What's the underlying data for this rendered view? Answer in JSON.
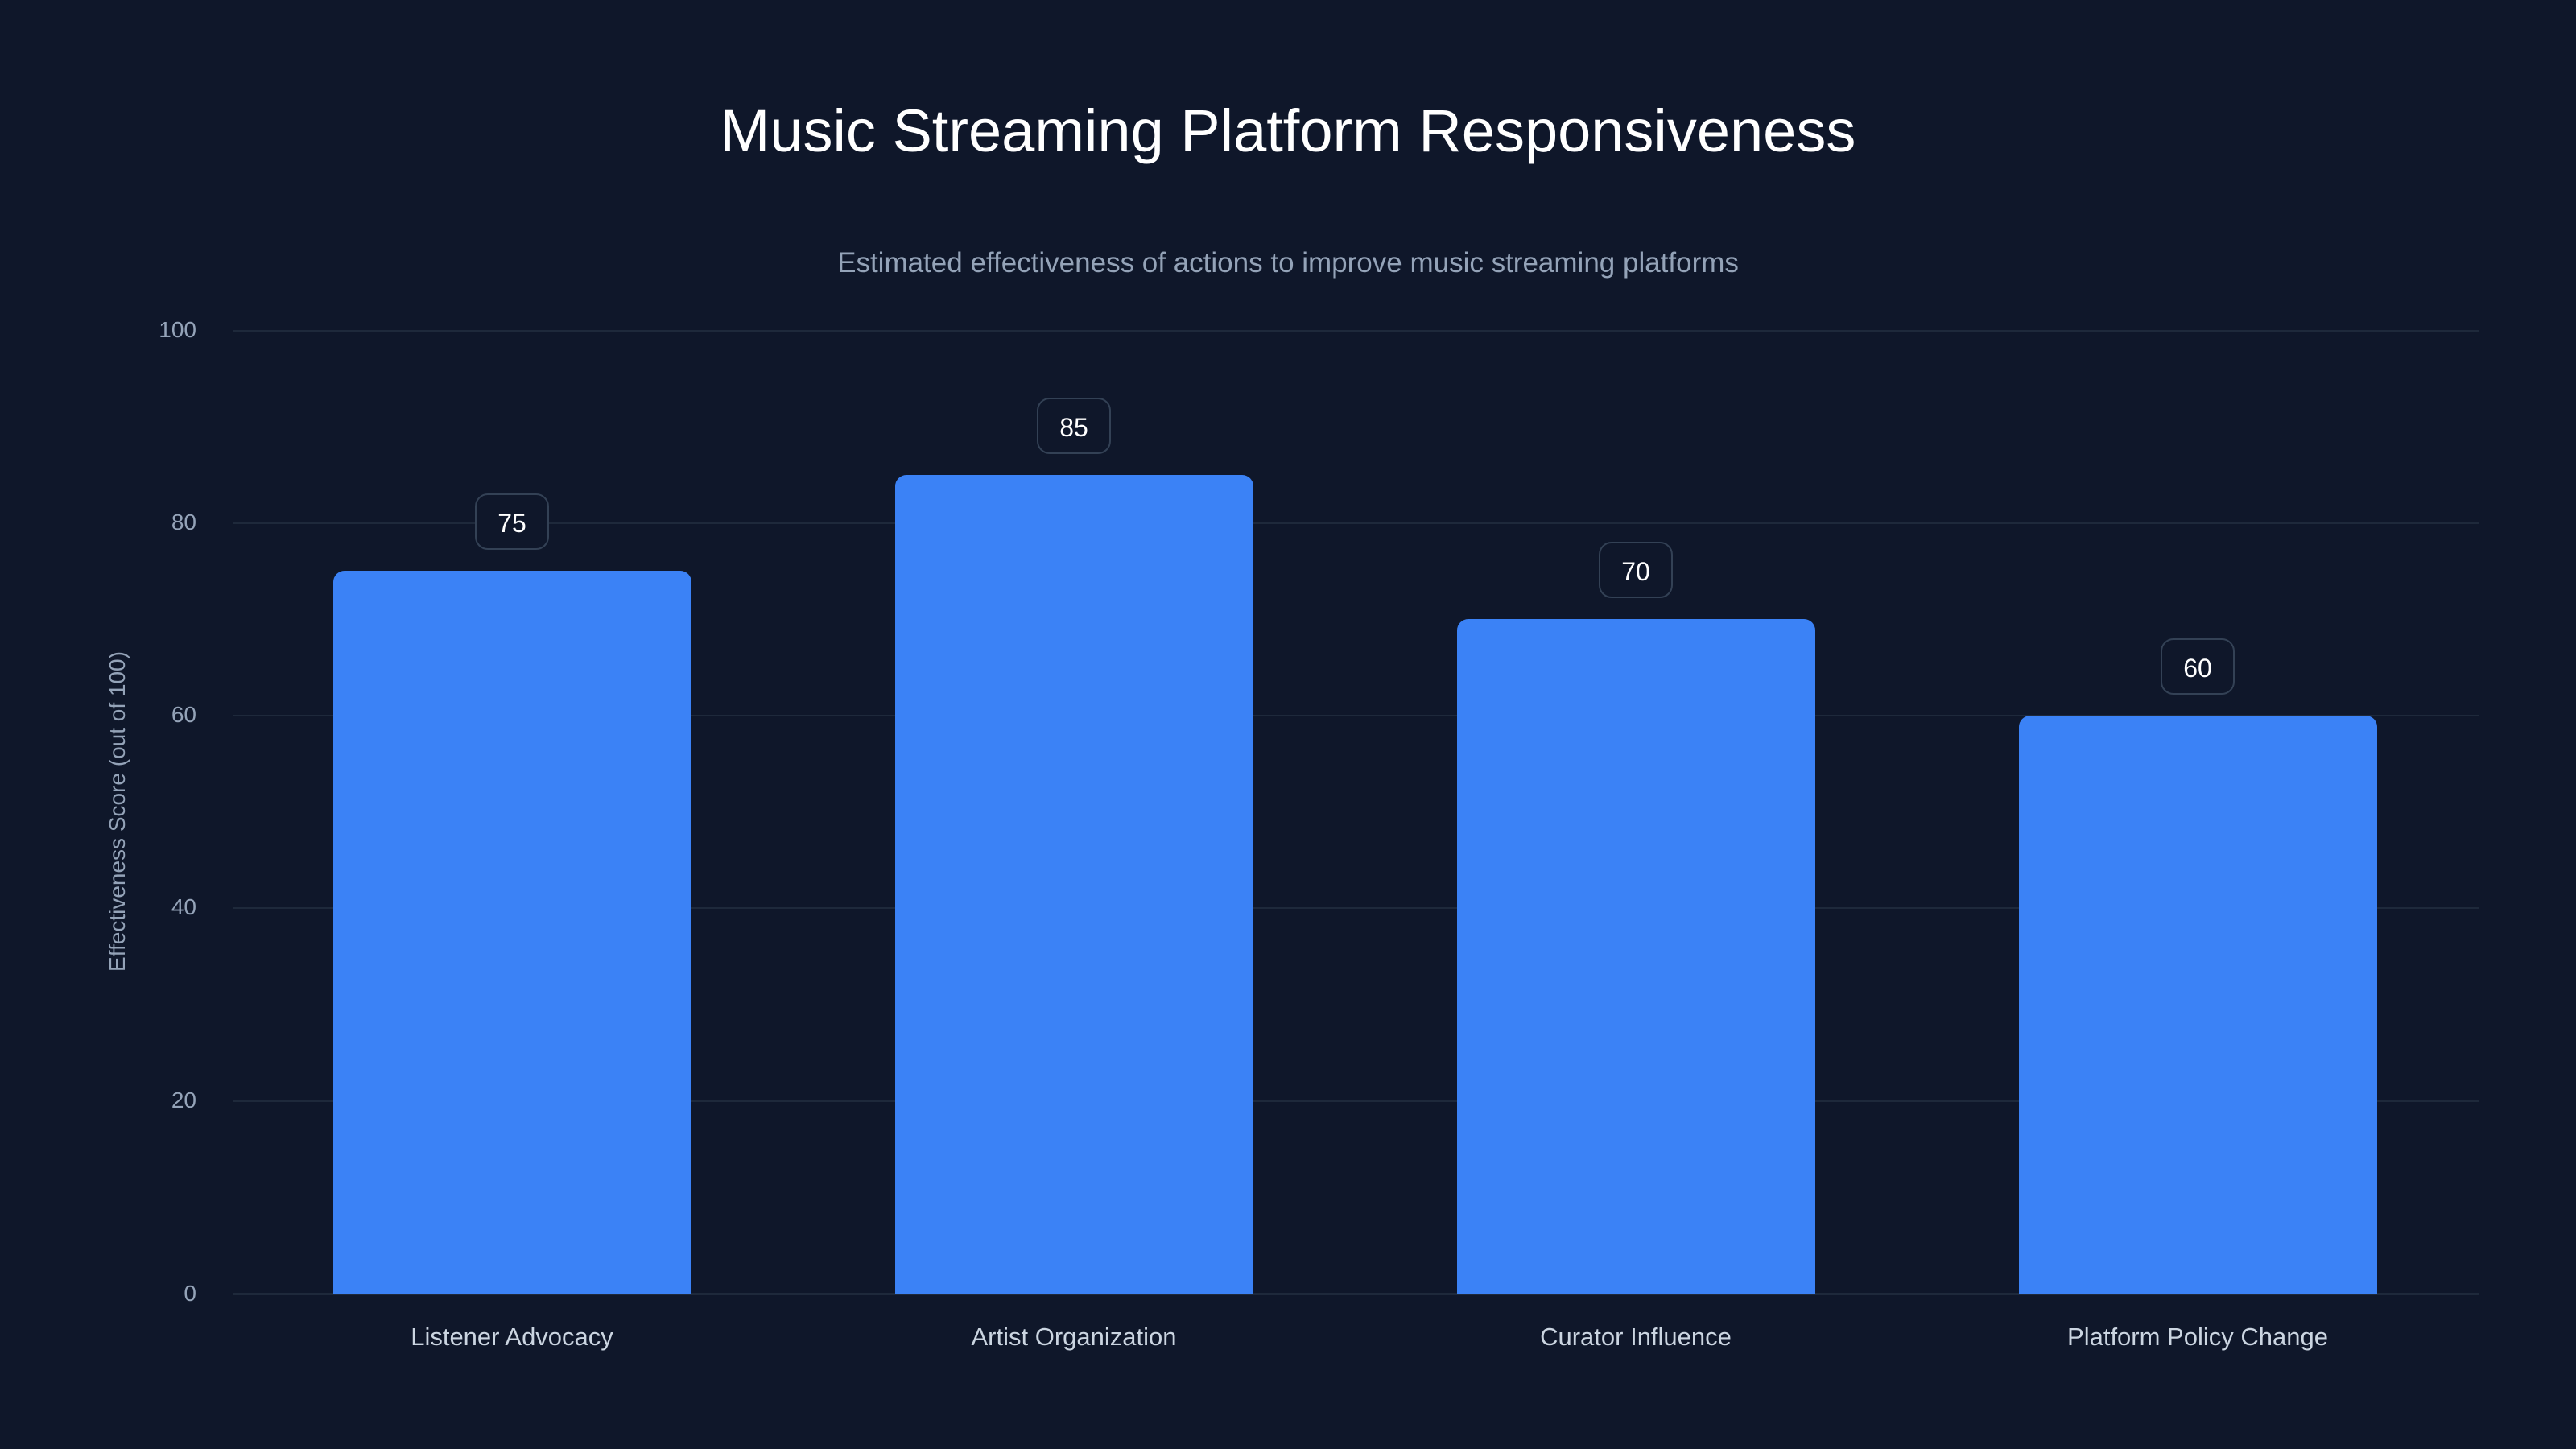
{
  "chart_data": {
    "type": "bar",
    "title": "Music Streaming Platform Responsiveness",
    "subtitle": "Estimated effectiveness of actions to improve music streaming platforms",
    "categories": [
      "Listener Advocacy",
      "Artist Organization",
      "Curator Influence",
      "Platform Policy Change"
    ],
    "values": [
      75,
      85,
      70,
      60
    ],
    "value_labels": [
      "75",
      "85",
      "70",
      "60"
    ],
    "xlabel": "",
    "ylabel": "Effectiveness Score (out of 100)",
    "ylim": [
      0,
      100
    ],
    "yticks": [
      "0",
      "20",
      "40",
      "60",
      "80",
      "100"
    ],
    "grid": true,
    "legend": null,
    "colors": {
      "bar": "#3b82f6",
      "background": "#0f172a",
      "grid": "#1e293b"
    }
  }
}
